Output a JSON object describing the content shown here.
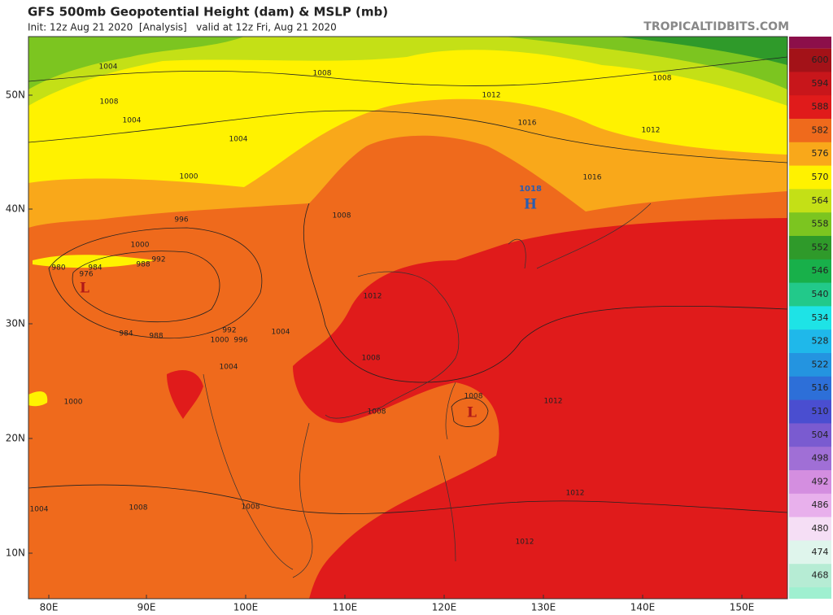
{
  "header": {
    "title": "GFS 500mb Geopotential Height (dam) & MSLP (mb)",
    "subtitle": "Init: 12z Aug 21 2020  [Analysis]   valid at 12z Fri, Aug 21 2020",
    "site": "TROPICALTIDBITS.COM"
  },
  "legend": {
    "levels": [
      {
        "label": "600",
        "color": "#a31218"
      },
      {
        "label": "594",
        "color": "#c8161b"
      },
      {
        "label": "588",
        "color": "#e01b1b"
      },
      {
        "label": "582",
        "color": "#ef6a1c"
      },
      {
        "label": "576",
        "color": "#f9a81a"
      },
      {
        "label": "570",
        "color": "#fff200"
      },
      {
        "label": "564",
        "color": "#c4e016"
      },
      {
        "label": "558",
        "color": "#7cc520"
      },
      {
        "label": "552",
        "color": "#2f9a2a"
      },
      {
        "label": "546",
        "color": "#18b04a"
      },
      {
        "label": "540",
        "color": "#22c98a"
      },
      {
        "label": "534",
        "color": "#1ee3e6"
      },
      {
        "label": "528",
        "color": "#1fb8ea"
      },
      {
        "label": "522",
        "color": "#2494e0"
      },
      {
        "label": "516",
        "color": "#2d6fd8"
      },
      {
        "label": "510",
        "color": "#4a4ed0"
      },
      {
        "label": "504",
        "color": "#7a5bd0"
      },
      {
        "label": "498",
        "color": "#a06fd6"
      },
      {
        "label": "492",
        "color": "#d48ee0"
      },
      {
        "label": "486",
        "color": "#e8b0ec"
      },
      {
        "label": "480",
        "color": "#f5def5"
      },
      {
        "label": "474",
        "color": "#dff5ec"
      },
      {
        "label": "468",
        "color": "#b6ecd4"
      }
    ],
    "above_color": "#8c0f4a",
    "below_color": "#9ff0d0"
  },
  "axes": {
    "latitude": [
      "50N",
      "40N",
      "30N",
      "20N",
      "10N"
    ],
    "longitude": [
      "80E",
      "90E",
      "100E",
      "110E",
      "120E",
      "130E",
      "140E",
      "150E"
    ]
  },
  "map_labels": [
    "1004",
    "1008",
    "1012",
    "1008",
    "1008",
    "1004",
    "1016",
    "1012",
    "1004",
    "1000",
    "1016",
    "1018",
    "H",
    "996",
    "1008",
    "1000",
    "992",
    "988",
    "984",
    "980",
    "976",
    "L",
    "1012",
    "984",
    "988",
    "992",
    "996",
    "1000",
    "1004",
    "1008",
    "1004",
    "1000",
    "1008",
    "L",
    "1012",
    "1008",
    "1008",
    "1008",
    "1004",
    "1012",
    "1012"
  ]
}
